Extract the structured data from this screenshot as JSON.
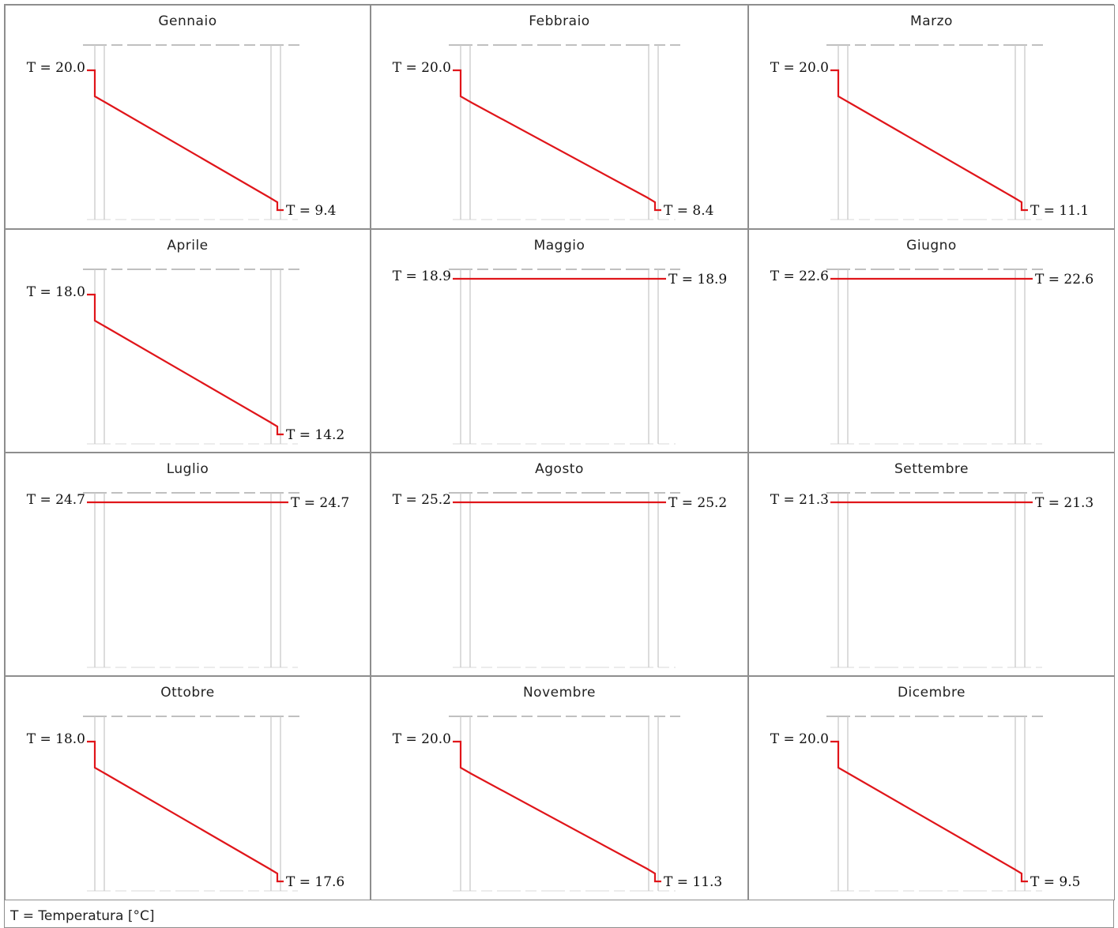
{
  "colors": {
    "profile": "#e0151a",
    "layer_line": "#c9c9c9",
    "border": "#8e8e8e",
    "dash": "#9a9a9a"
  },
  "months": [
    {
      "name": "Gennaio",
      "t_in": "T = 20.0",
      "t_out": "T = 9.4",
      "in_value": 20.0,
      "out_value": 9.4,
      "profile": "sloped"
    },
    {
      "name": "Febbraio",
      "t_in": "T = 20.0",
      "t_out": "T = 8.4",
      "in_value": 20.0,
      "out_value": 8.4,
      "profile": "sloped"
    },
    {
      "name": "Marzo",
      "t_in": "T = 20.0",
      "t_out": "T = 11.1",
      "in_value": 20.0,
      "out_value": 11.1,
      "profile": "sloped"
    },
    {
      "name": "Aprile",
      "t_in": "T = 18.0",
      "t_out": "T = 14.2",
      "in_value": 18.0,
      "out_value": 14.2,
      "profile": "sloped"
    },
    {
      "name": "Maggio",
      "t_in": "T = 18.9",
      "t_out": "T = 18.9",
      "in_value": 18.9,
      "out_value": 18.9,
      "profile": "flat"
    },
    {
      "name": "Giugno",
      "t_in": "T = 22.6",
      "t_out": "T = 22.6",
      "in_value": 22.6,
      "out_value": 22.6,
      "profile": "flat"
    },
    {
      "name": "Luglio",
      "t_in": "T = 24.7",
      "t_out": "T = 24.7",
      "in_value": 24.7,
      "out_value": 24.7,
      "profile": "flat"
    },
    {
      "name": "Agosto",
      "t_in": "T = 25.2",
      "t_out": "T = 25.2",
      "in_value": 25.2,
      "out_value": 25.2,
      "profile": "flat"
    },
    {
      "name": "Settembre",
      "t_in": "T = 21.3",
      "t_out": "T = 21.3",
      "in_value": 21.3,
      "out_value": 21.3,
      "profile": "flat"
    },
    {
      "name": "Ottobre",
      "t_in": "T = 18.0",
      "t_out": "T = 17.6",
      "in_value": 18.0,
      "out_value": 17.6,
      "profile": "sloped"
    },
    {
      "name": "Novembre",
      "t_in": "T = 20.0",
      "t_out": "T = 11.3",
      "in_value": 20.0,
      "out_value": 11.3,
      "profile": "sloped"
    },
    {
      "name": "Dicembre",
      "t_in": "T = 20.0",
      "t_out": "T = 9.5",
      "in_value": 20.0,
      "out_value": 9.5,
      "profile": "sloped"
    }
  ],
  "legend": "T = Temperatura [°C]"
}
